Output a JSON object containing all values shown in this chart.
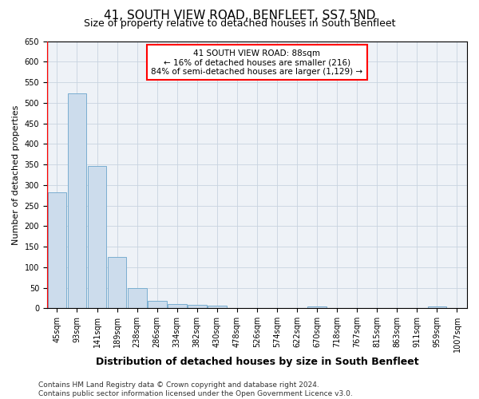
{
  "title": "41, SOUTH VIEW ROAD, BENFLEET, SS7 5ND",
  "subtitle": "Size of property relative to detached houses in South Benfleet",
  "xlabel": "Distribution of detached houses by size in South Benfleet",
  "ylabel": "Number of detached properties",
  "categories": [
    "45sqm",
    "93sqm",
    "141sqm",
    "189sqm",
    "238sqm",
    "286sqm",
    "334sqm",
    "382sqm",
    "430sqm",
    "478sqm",
    "526sqm",
    "574sqm",
    "622sqm",
    "670sqm",
    "718sqm",
    "767sqm",
    "815sqm",
    "863sqm",
    "911sqm",
    "959sqm",
    "1007sqm"
  ],
  "values": [
    283,
    522,
    347,
    125,
    49,
    19,
    11,
    9,
    7,
    0,
    0,
    0,
    0,
    5,
    0,
    0,
    0,
    0,
    0,
    5,
    0
  ],
  "bar_color": "#ccdcec",
  "bar_edge_color": "#7aaed0",
  "vline_color": "red",
  "vline_pos": -0.5,
  "annotation_text": "41 SOUTH VIEW ROAD: 88sqm\n← 16% of detached houses are smaller (216)\n84% of semi-detached houses are larger (1,129) →",
  "annotation_box_color": "white",
  "annotation_box_edge_color": "red",
  "ylim": [
    0,
    650
  ],
  "yticks": [
    0,
    50,
    100,
    150,
    200,
    250,
    300,
    350,
    400,
    450,
    500,
    550,
    600,
    650
  ],
  "footer_line1": "Contains HM Land Registry data © Crown copyright and database right 2024.",
  "footer_line2": "Contains public sector information licensed under the Open Government Licence v3.0.",
  "bg_color": "#eef2f7",
  "grid_color": "#c8d4e0",
  "title_fontsize": 11,
  "subtitle_fontsize": 9,
  "xlabel_fontsize": 9,
  "ylabel_fontsize": 8,
  "tick_fontsize": 7,
  "annotation_fontsize": 7.5,
  "footer_fontsize": 6.5
}
